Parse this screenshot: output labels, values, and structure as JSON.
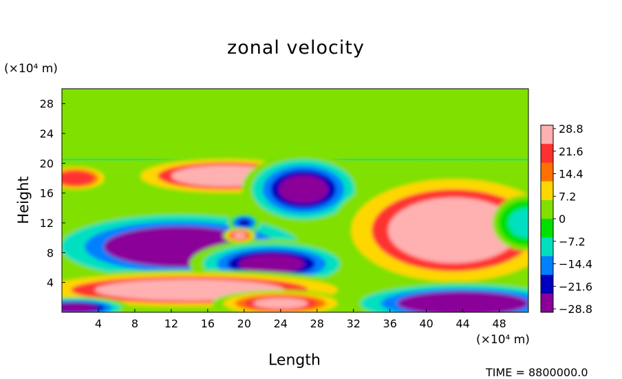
{
  "chart_data": {
    "type": "heatmap",
    "title": "zonal velocity",
    "xlabel": "Length",
    "ylabel": "Height",
    "x_unit_label": "(×10⁴ m)",
    "y_unit_label": "(×10⁴ m)",
    "x_ticks": [
      "4",
      "8",
      "12",
      "16",
      "20",
      "24",
      "28",
      "32",
      "36",
      "40",
      "44",
      "48"
    ],
    "y_ticks": [
      "4",
      "8",
      "12",
      "16",
      "20",
      "24",
      "28"
    ],
    "xlim": [
      0,
      51.2
    ],
    "ylim": [
      0,
      30
    ],
    "colorbar": {
      "labels": [
        "28.8",
        "21.6",
        "14.4",
        "7.2",
        "0",
        "−7.2",
        "−14.4",
        "−21.6",
        "−28.8"
      ],
      "range": [
        -28.8,
        28.8
      ],
      "colors": [
        "#ffb0b0",
        "#ff3030",
        "#ff7000",
        "#ffd700",
        "#80e000",
        "#00e000",
        "#00e0c0",
        "#0080ff",
        "#0000c0",
        "#8a0099"
      ]
    },
    "background_value": 2,
    "upper_layer": {
      "y_from": 20.5,
      "value": 2
    },
    "features": [
      {
        "name": "upper-left jet",
        "cx": 18,
        "cy": 18.3,
        "rx": 7.5,
        "ry": 1.8,
        "value": 29
      },
      {
        "name": "left edge positive",
        "cx": 1.5,
        "cy": 18,
        "rx": 2.5,
        "ry": 1.2,
        "value": 22
      },
      {
        "name": "central-left negative core",
        "cx": 13,
        "cy": 8.8,
        "rx": 10.5,
        "ry": 3.4,
        "value": -30
      },
      {
        "name": "central negative extension",
        "cx": 23,
        "cy": 6.5,
        "rx": 6,
        "ry": 2.2,
        "value": -29
      },
      {
        "name": "upper-center negative",
        "cx": 26.5,
        "cy": 16.5,
        "rx": 4.5,
        "ry": 3.2,
        "value": -26
      },
      {
        "name": "small negative eddy",
        "cx": 20,
        "cy": 12,
        "rx": 1.2,
        "ry": 0.9,
        "value": -22
      },
      {
        "name": "small positive eddy",
        "cx": 19.5,
        "cy": 10.3,
        "rx": 1.2,
        "ry": 0.7,
        "value": 26
      },
      {
        "name": "right positive core",
        "cx": 43,
        "cy": 11,
        "rx": 9,
        "ry": 5.5,
        "value": 29
      },
      {
        "name": "bottom-left positive jet",
        "cx": 14,
        "cy": 3,
        "rx": 13,
        "ry": 1.8,
        "value": 29
      },
      {
        "name": "bottom-center positive",
        "cx": 24,
        "cy": 1.2,
        "rx": 5,
        "ry": 1.2,
        "value": 27
      },
      {
        "name": "bottom-left negative",
        "cx": 1.5,
        "cy": 0.6,
        "rx": 4,
        "ry": 1,
        "value": -28
      },
      {
        "name": "bottom-right negative",
        "cx": 44,
        "cy": 1.2,
        "rx": 9,
        "ry": 2,
        "value": -30
      },
      {
        "name": "right edge cyan",
        "cx": 51,
        "cy": 12,
        "rx": 2.5,
        "ry": 2.5,
        "value": -10
      }
    ]
  },
  "footer": {
    "time_label": "TIME  =  8800000.0"
  }
}
